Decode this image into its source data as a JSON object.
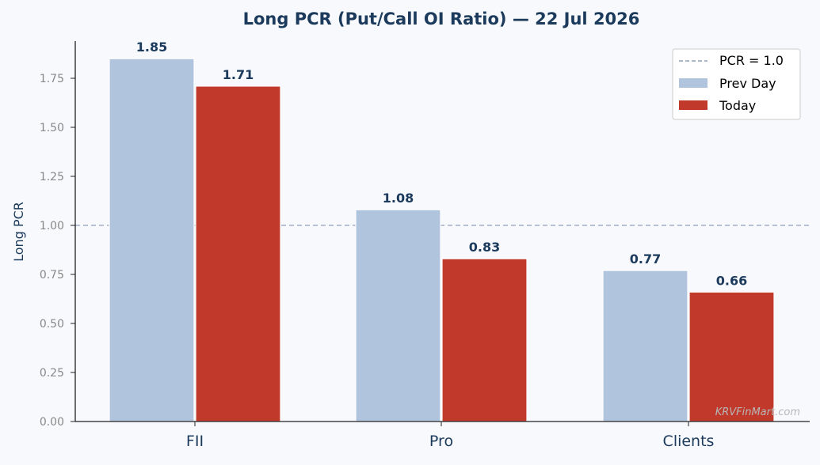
{
  "chart_data": {
    "type": "bar",
    "title": "Long PCR (Put/Call OI Ratio) — 22 Jul 2026",
    "xlabel": "",
    "ylabel": "Long PCR",
    "categories": [
      "FII",
      "Pro",
      "Clients"
    ],
    "series": [
      {
        "name": "Prev Day",
        "values": [
          1.85,
          1.08,
          0.77
        ],
        "color": "#b0c4de"
      },
      {
        "name": "Today",
        "values": [
          1.71,
          0.83,
          0.66
        ],
        "color": "#c0392b"
      }
    ],
    "data_labels": [
      [
        "1.85",
        "1.08",
        "0.77"
      ],
      [
        "1.71",
        "0.83",
        "0.66"
      ]
    ],
    "ylim": [
      0,
      1.93
    ],
    "yticks": [
      0,
      0.25,
      0.5,
      0.75,
      1.0,
      1.25,
      1.5,
      1.75
    ],
    "ytick_labels": [
      "0.00",
      "0.25",
      "0.50",
      "0.75",
      "1.00",
      "1.25",
      "1.50",
      "1.75"
    ],
    "reference_line": {
      "label": "PCR = 1.0",
      "value": 1.0,
      "style": "dashed",
      "color": "#8ea0b8"
    },
    "legend": {
      "position": "top-right"
    },
    "grid": false,
    "watermark": "KRVFinMart.com",
    "colors": {
      "title": "#1b3a5c",
      "label": "#1b3a5c",
      "tick": "#888888",
      "axis": "#222222",
      "background": "#f7f9fc"
    }
  }
}
